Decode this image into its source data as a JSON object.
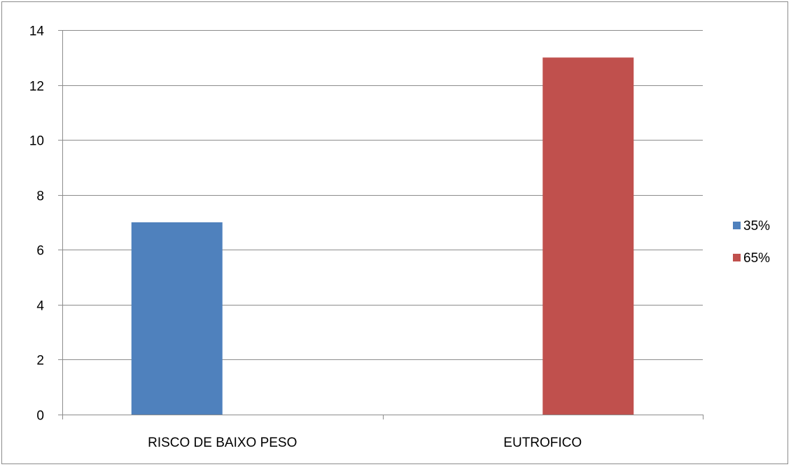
{
  "chart_data": {
    "type": "bar",
    "categories": [
      "RISCO DE BAIXO PESO",
      "EUTROFICO"
    ],
    "series": [
      {
        "name": "35%",
        "color": "#4f81bd",
        "values": [
          7,
          null
        ]
      },
      {
        "name": "65%",
        "color": "#c0504d",
        "values": [
          null,
          13
        ]
      }
    ],
    "ylim": [
      0,
      14
    ],
    "yticks": [
      0,
      2,
      4,
      6,
      8,
      10,
      12,
      14
    ],
    "grid": true,
    "legend": "right"
  }
}
